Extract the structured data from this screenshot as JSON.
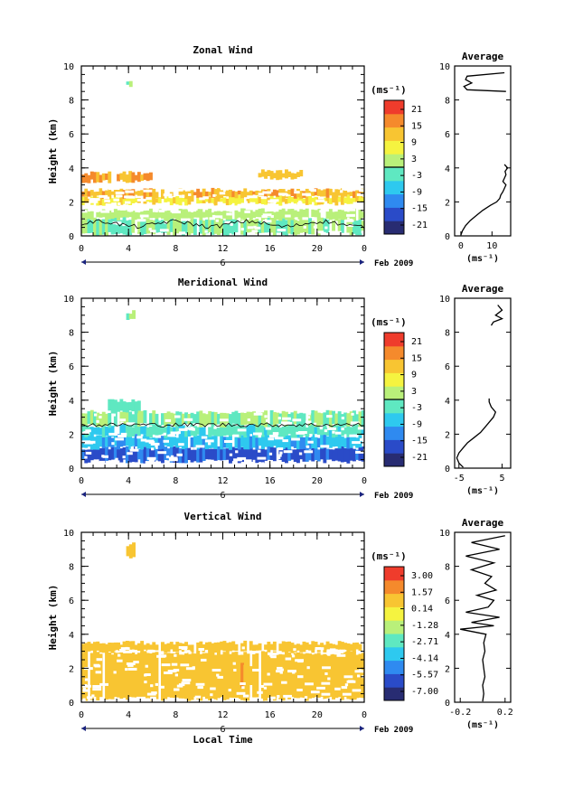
{
  "panels": [
    {
      "title": "Zonal Wind",
      "ylabel": "Height (km)",
      "unit_label": "(ms⁻¹)",
      "colorbar_ticks": [
        "21",
        "15",
        "9",
        "3",
        "-3",
        "-9",
        "-15",
        "-21"
      ],
      "avg_title": "Average",
      "avg_xticks": [
        "0",
        "10"
      ],
      "avg_xlabel": "(ms⁻¹)"
    },
    {
      "title": "Meridional Wind",
      "ylabel": "Height (km)",
      "unit_label": "(ms⁻¹)",
      "colorbar_ticks": [
        "21",
        "15",
        "9",
        "3",
        "-3",
        "-9",
        "-15",
        "-21"
      ],
      "avg_title": "Average",
      "avg_xticks": [
        "-5",
        "5"
      ],
      "avg_xlabel": "(ms⁻¹)"
    },
    {
      "title": "Vertical Wind",
      "ylabel": "Height (km)",
      "unit_label": "(ms⁻¹)",
      "colorbar_ticks": [
        "3.00",
        "1.57",
        "0.14",
        "-1.28",
        "-2.71",
        "-4.14",
        "-5.57",
        "-7.00"
      ],
      "avg_title": "Average",
      "avg_xticks": [
        "-0.2",
        "0.2"
      ],
      "avg_xlabel": "(ms⁻¹)"
    }
  ],
  "xaxis": {
    "ticks": [
      "0",
      "4",
      "8",
      "12",
      "16",
      "20",
      "0"
    ],
    "day_label": "6",
    "date_label": "Feb 2009",
    "title": "Local Time"
  },
  "yaxis_ticks": [
    "0",
    "2",
    "4",
    "6",
    "8",
    "10"
  ],
  "colors": {
    "colormap": [
      "#282c72",
      "#2a4bc8",
      "#2f8af0",
      "#2ec9ef",
      "#5fe8c1",
      "#b9f07a",
      "#f5f340",
      "#f8c532",
      "#f58a2c",
      "#ef3c2c"
    ]
  },
  "chart_data": [
    {
      "type": "heatmap",
      "title": "Zonal Wind",
      "xlabel": "",
      "ylabel": "Height (km)",
      "xlim": [
        0,
        24
      ],
      "ylim": [
        0,
        10
      ],
      "color_range": [
        -24,
        24
      ],
      "layers": [
        {
          "x_range": [
            0,
            24
          ],
          "y_range": [
            0.1,
            1.0
          ],
          "value": 0
        },
        {
          "x_range": [
            0,
            24
          ],
          "y_range": [
            1.0,
            1.5
          ],
          "value": 3
        },
        {
          "x_range": [
            0,
            24
          ],
          "y_range": [
            1.9,
            2.3
          ],
          "value": 9
        },
        {
          "x_range": [
            0,
            24
          ],
          "y_range": [
            2.3,
            2.7
          ],
          "value": 14
        },
        {
          "x_range": [
            0,
            6
          ],
          "y_range": [
            3.2,
            3.7
          ],
          "value": 15
        },
        {
          "x_range": [
            15,
            19
          ],
          "y_range": [
            3.4,
            3.8
          ],
          "value": 12
        },
        {
          "x_range": [
            3.8,
            4.2
          ],
          "y_range": [
            8.8,
            9.2
          ],
          "value": 0
        }
      ],
      "average_profile": {
        "xlim": [
          -2,
          16
        ],
        "height": [
          0.05,
          0.3,
          0.6,
          0.9,
          1.2,
          1.5,
          1.8,
          2.0,
          2.2,
          2.4,
          2.6,
          2.8,
          3.0,
          3.2,
          3.4,
          3.6,
          3.8,
          4.0,
          4.2,
          8.5,
          8.6,
          8.8,
          9.0,
          9.2,
          9.4,
          9.6
        ],
        "value": [
          0.0,
          0.5,
          1.5,
          3.0,
          5.0,
          7.0,
          9.5,
          11.5,
          12.5,
          12.8,
          13.5,
          14.0,
          14.5,
          13.5,
          14.0,
          14.5,
          14.2,
          15.0,
          14.0,
          14.5,
          2.0,
          1.0,
          3.5,
          1.5,
          2.0,
          14.0
        ]
      }
    },
    {
      "type": "heatmap",
      "title": "Meridional Wind",
      "xlabel": "",
      "ylabel": "Height (km)",
      "xlim": [
        0,
        24
      ],
      "ylim": [
        0,
        10
      ],
      "color_range": [
        -24,
        24
      ],
      "layers": [
        {
          "x_range": [
            0,
            24
          ],
          "y_range": [
            0.4,
            1.2
          ],
          "value": -15
        },
        {
          "x_range": [
            0,
            24
          ],
          "y_range": [
            1.2,
            1.9
          ],
          "value": -9
        },
        {
          "x_range": [
            0,
            24
          ],
          "y_range": [
            1.9,
            2.5
          ],
          "value": -4
        },
        {
          "x_range": [
            0,
            24
          ],
          "y_range": [
            2.5,
            3.3
          ],
          "value": 0
        },
        {
          "x_range": [
            2,
            5
          ],
          "y_range": [
            3.3,
            4.0
          ],
          "value": -1
        },
        {
          "x_range": [
            3.8,
            4.5
          ],
          "y_range": [
            8.8,
            9.2
          ],
          "value": 1
        }
      ],
      "average_profile": {
        "xlim": [
          -6,
          7
        ],
        "height": [
          0.05,
          0.3,
          0.6,
          0.9,
          1.2,
          1.5,
          1.8,
          2.1,
          2.4,
          2.7,
          3.0,
          3.3,
          3.6,
          3.9,
          4.1,
          8.4,
          8.6,
          8.8,
          9.0,
          9.3,
          9.6
        ],
        "value": [
          -4.0,
          -5.0,
          -5.5,
          -5.0,
          -4.0,
          -3.0,
          -1.5,
          0.0,
          1.0,
          2.0,
          3.0,
          3.5,
          2.5,
          2.0,
          2.0,
          2.5,
          3.0,
          5.0,
          3.5,
          5.0,
          4.0
        ]
      }
    },
    {
      "type": "heatmap",
      "title": "Vertical Wind",
      "xlabel": "Local Time",
      "ylabel": "Height (km)",
      "xlim": [
        0,
        24
      ],
      "ylim": [
        0,
        10
      ],
      "color_range": [
        -7.0,
        3.0
      ],
      "layers": [
        {
          "x_range": [
            0,
            24
          ],
          "y_range": [
            0.2,
            2.9
          ],
          "value": 0.4
        },
        {
          "x_range": [
            13.5,
            14.5
          ],
          "y_range": [
            1.0,
            2.2
          ],
          "value": 0.9
        },
        {
          "x_range": [
            0,
            24
          ],
          "y_range": [
            3.0,
            3.5
          ],
          "value": 0.4
        },
        {
          "x_range": [
            3.8,
            4.5
          ],
          "y_range": [
            8.5,
            9.3
          ],
          "value": 0.4
        }
      ],
      "average_profile": {
        "xlim": [
          -0.25,
          0.25
        ],
        "height": [
          0.05,
          0.5,
          1.0,
          1.5,
          2.0,
          2.5,
          3.0,
          3.5,
          4.0,
          4.3,
          4.5,
          4.7,
          5.0,
          5.3,
          5.6,
          6.0,
          6.3,
          6.6,
          7.0,
          7.4,
          7.8,
          8.2,
          8.6,
          9.0,
          9.4,
          9.8
        ],
        "value": [
          0.0,
          0.01,
          0.0,
          0.02,
          0.01,
          0.0,
          0.02,
          0.01,
          0.03,
          -0.2,
          0.1,
          -0.1,
          0.15,
          -0.15,
          0.05,
          0.1,
          -0.05,
          0.12,
          0.02,
          0.08,
          -0.1,
          0.1,
          -0.15,
          0.15,
          -0.1,
          0.2
        ]
      }
    }
  ]
}
